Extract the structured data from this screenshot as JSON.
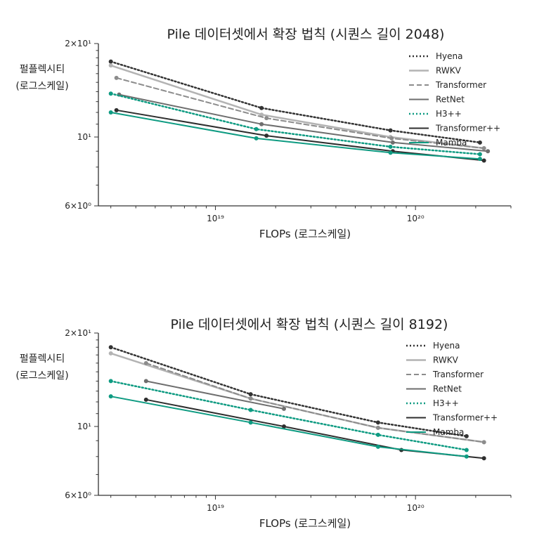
{
  "styles": {
    "Hyena": {
      "color": "#333333",
      "dash": "2,3",
      "width": 2.5
    },
    "RWKV": {
      "color": "#b3b3b3",
      "dash": "",
      "width": 2.5
    },
    "Transformer": {
      "color": "#8c8c8c",
      "dash": "7,4",
      "width": 2
    },
    "RetNet": {
      "color": "#6e6e6e",
      "dash": "",
      "width": 2
    },
    "H3++": {
      "color": "#0e9b82",
      "dash": "2,3",
      "width": 2.5
    },
    "Transformer++": {
      "color": "#2e2e2e",
      "dash": "",
      "width": 2
    },
    "Mamba": {
      "color": "#0e9b82",
      "dash": "",
      "width": 2
    }
  },
  "chart_data": [
    {
      "type": "line",
      "title": "Pile 데이터셋에서 확장 법칙 (시퀀스 길이 2048)",
      "xlabel": "FLOPs (로그스케일)",
      "ylabel_line1": "펄플렉시티",
      "ylabel_line2": "(로그스케일)",
      "x_scale": "log",
      "y_scale": "log",
      "xlim": [
        2.6e+18,
        3e+20
      ],
      "ylim": [
        6,
        20
      ],
      "x_ticks": [
        {
          "value": 1e+19,
          "label": "10¹⁹"
        },
        {
          "value": 1e+20,
          "label": "10²⁰"
        }
      ],
      "y_ticks": [
        {
          "value": 20,
          "label": "2×10¹"
        },
        {
          "value": 10,
          "label": "10¹"
        },
        {
          "value": 6,
          "label": "6×10⁰"
        }
      ],
      "legend_position": "top-right",
      "series": [
        {
          "name": "Hyena",
          "x": [
            3e+18,
            1.7e+19,
            7.5e+19,
            2.1e+20
          ],
          "y": [
            17.5,
            12.4,
            10.5,
            9.6
          ]
        },
        {
          "name": "RWKV",
          "x": [
            3e+18,
            1.7e+19,
            7.5e+19,
            2.2e+20
          ],
          "y": [
            17.0,
            11.8,
            10.0,
            9.2
          ]
        },
        {
          "name": "Transformer",
          "x": [
            3.2e+18,
            1.8e+19,
            7.6e+19,
            2.2e+20
          ],
          "y": [
            15.5,
            11.5,
            9.9,
            9.2
          ]
        },
        {
          "name": "RetNet",
          "x": [
            3.3e+18,
            1.7e+19,
            7.7e+19,
            2.3e+20
          ],
          "y": [
            13.7,
            11.0,
            9.6,
            9.0
          ]
        },
        {
          "name": "H3++",
          "x": [
            3e+18,
            1.6e+19,
            7.5e+19,
            2.1e+20
          ],
          "y": [
            13.8,
            10.6,
            9.3,
            8.8
          ]
        },
        {
          "name": "Transformer++",
          "x": [
            3.2e+18,
            1.8e+19,
            7.7e+19,
            2.2e+20
          ],
          "y": [
            12.2,
            10.1,
            9.0,
            8.4
          ]
        },
        {
          "name": "Mamba",
          "x": [
            3e+18,
            1.6e+19,
            7.5e+19,
            2.1e+20
          ],
          "y": [
            12.0,
            9.9,
            8.9,
            8.5
          ]
        }
      ]
    },
    {
      "type": "line",
      "title": "Pile 데이터셋에서 확장 법칙 (시퀀스 길이 8192)",
      "xlabel": "FLOPs (로그스케일)",
      "ylabel_line1": "펄플렉시티",
      "ylabel_line2": "(로그스케일)",
      "x_scale": "log",
      "y_scale": "log",
      "xlim": [
        2.6e+18,
        3e+20
      ],
      "ylim": [
        6,
        20
      ],
      "x_ticks": [
        {
          "value": 1e+19,
          "label": "10¹⁹"
        },
        {
          "value": 1e+20,
          "label": "10²⁰"
        }
      ],
      "y_ticks": [
        {
          "value": 20,
          "label": "2×10¹"
        },
        {
          "value": 10,
          "label": "10¹"
        },
        {
          "value": 6,
          "label": "6×10⁰"
        }
      ],
      "legend_position": "top-right",
      "series": [
        {
          "name": "Hyena",
          "x": [
            3e+18,
            1.5e+19,
            6.5e+19,
            1.8e+20
          ],
          "y": [
            18.0,
            12.7,
            10.3,
            9.3
          ]
        },
        {
          "name": "RWKV",
          "x": [
            3e+18,
            1.5e+19,
            6.5e+19,
            2.2e+20
          ],
          "y": [
            17.2,
            12.3,
            9.9,
            8.9
          ]
        },
        {
          "name": "Transformer",
          "x": [
            4.5e+18,
            1.5e+19,
            6.5e+19,
            2.2e+20
          ],
          "y": [
            16.0,
            12.3,
            9.9,
            8.9
          ]
        },
        {
          "name": "RetNet",
          "x": [
            4.5e+18,
            2.2e+19
          ],
          "y": [
            14.0,
            11.4
          ]
        },
        {
          "name": "H3++",
          "x": [
            3e+18,
            1.5e+19,
            6.5e+19,
            1.8e+20
          ],
          "y": [
            14.0,
            11.3,
            9.4,
            8.4
          ]
        },
        {
          "name": "Transformer++",
          "x": [
            4.5e+18,
            2.2e+19,
            8.5e+19,
            2.2e+20
          ],
          "y": [
            12.2,
            10.0,
            8.4,
            7.9
          ]
        },
        {
          "name": "Mamba",
          "x": [
            3e+18,
            1.5e+19,
            6.5e+19,
            1.8e+20
          ],
          "y": [
            12.5,
            10.3,
            8.6,
            8.0
          ]
        }
      ]
    }
  ]
}
